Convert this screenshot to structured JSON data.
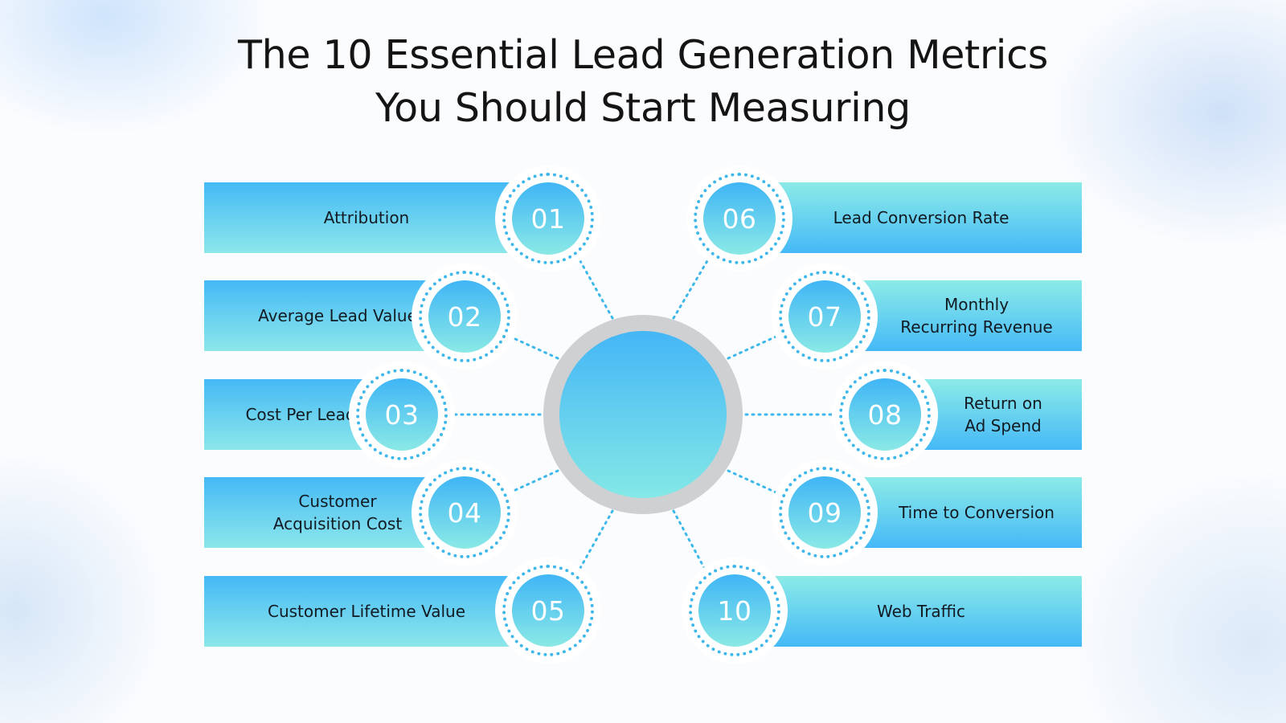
{
  "title": {
    "line1": "The 10 Essential Lead Generation Metrics",
    "line2": "You Should Start Measuring"
  },
  "metrics": [
    {
      "number": "01",
      "lines": [
        "Attribution"
      ]
    },
    {
      "number": "02",
      "lines": [
        "Average Lead Value"
      ]
    },
    {
      "number": "03",
      "lines": [
        "Cost Per Lead"
      ]
    },
    {
      "number": "04",
      "lines": [
        "Customer",
        "Acquisition Cost"
      ]
    },
    {
      "number": "05",
      "lines": [
        "Customer Lifetime Value"
      ]
    },
    {
      "number": "06",
      "lines": [
        "Lead Conversion Rate"
      ]
    },
    {
      "number": "07",
      "lines": [
        "Monthly",
        "Recurring Revenue"
      ]
    },
    {
      "number": "08",
      "lines": [
        "Return on",
        "Ad Spend"
      ]
    },
    {
      "number": "09",
      "lines": [
        "Time to Conversion"
      ]
    },
    {
      "number": "10",
      "lines": [
        "Web Traffic"
      ]
    }
  ],
  "colors": {
    "accent_blue": "#45b9f6",
    "accent_cyan": "#8ce7ea",
    "hub_ring": "#cfd0d2",
    "dotted_line": "#3eb8ea",
    "title_text": "#141414"
  }
}
